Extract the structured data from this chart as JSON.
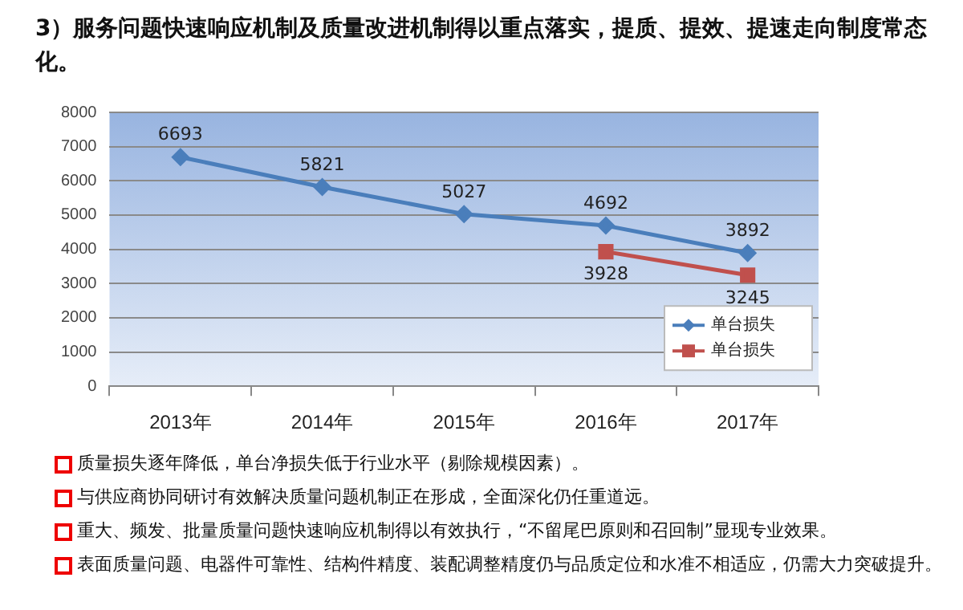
{
  "chart_data": {
    "type": "line",
    "title": "3）服务问题快速响应机制及质量改进机制得以重点落实，提质、提效、提速走向制度常态化。",
    "categories": [
      "2013年",
      "2014年",
      "2015年",
      "2016年",
      "2017年"
    ],
    "series": [
      {
        "name": "单台损失",
        "color": "#4a7ebb",
        "marker": "diamond",
        "values": [
          6693,
          5821,
          5027,
          4692,
          3892
        ]
      },
      {
        "name": "单台损失",
        "color": "#c0504d",
        "marker": "square",
        "values": [
          null,
          null,
          null,
          3928,
          3245
        ]
      }
    ],
    "ylim": [
      0,
      8000
    ],
    "yticks": [
      0,
      1000,
      2000,
      3000,
      4000,
      5000,
      6000,
      7000,
      8000
    ],
    "grid": "y",
    "legend": "bottom right",
    "data_labels": true,
    "annotations": [
      "质量损失逐年降低，单台净损失低于行业水平（剔除规模因素）。",
      "与供应商协同研讨有效解决质量问题机制正在形成，全面深化仍任重道远。",
      "重大、频发、批量质量问题快速响应机制得以有效执行，“不留尾巴原则和召回制”显现专业效果。",
      "表面质量问题、电器件可靠性、结构件精度、装配调整精度仍与品质定位和水准不相适应，仍需大力突破提升。"
    ]
  }
}
